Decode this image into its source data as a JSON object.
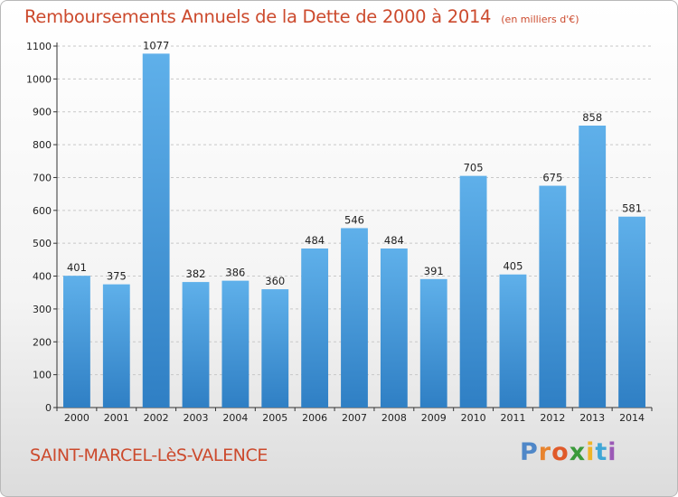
{
  "header": {
    "title": "Remboursements Annuels de la Dette de 2000 à 2014",
    "unit": "(en milliers d'€)"
  },
  "footer": {
    "commune": "SAINT-MARCEL-LèS-VALENCE",
    "brand_letters": [
      {
        "char": "P",
        "color": "#4f87c8"
      },
      {
        "char": "r",
        "color": "#e8842f"
      },
      {
        "char": "o",
        "color": "#e05a2a"
      },
      {
        "char": "x",
        "color": "#3b9a3b"
      },
      {
        "char": "i",
        "color": "#f0b428"
      },
      {
        "char": "t",
        "color": "#3fa6d6"
      },
      {
        "char": "i",
        "color": "#9b59b6"
      }
    ]
  },
  "colors": {
    "title": "#cc4a2d",
    "bar_top": "#5fb0ea",
    "bar_bottom": "#2f7fc4",
    "grid": "#c8c8c8"
  },
  "chart_data": {
    "type": "bar",
    "title": "Remboursements Annuels de la Dette de 2000 à 2014",
    "subtitle": "(en milliers d'€)",
    "categories": [
      "2000",
      "2001",
      "2002",
      "2003",
      "2004",
      "2005",
      "2006",
      "2007",
      "2008",
      "2009",
      "2010",
      "2011",
      "2012",
      "2013",
      "2014"
    ],
    "values": [
      401,
      375,
      1077,
      382,
      386,
      360,
      484,
      546,
      484,
      391,
      705,
      405,
      675,
      858,
      581
    ],
    "ylim": [
      0,
      1100
    ],
    "yticks": [
      0,
      100,
      200,
      300,
      400,
      500,
      600,
      700,
      800,
      900,
      1000,
      1100
    ],
    "grid": true,
    "legend": "none"
  }
}
